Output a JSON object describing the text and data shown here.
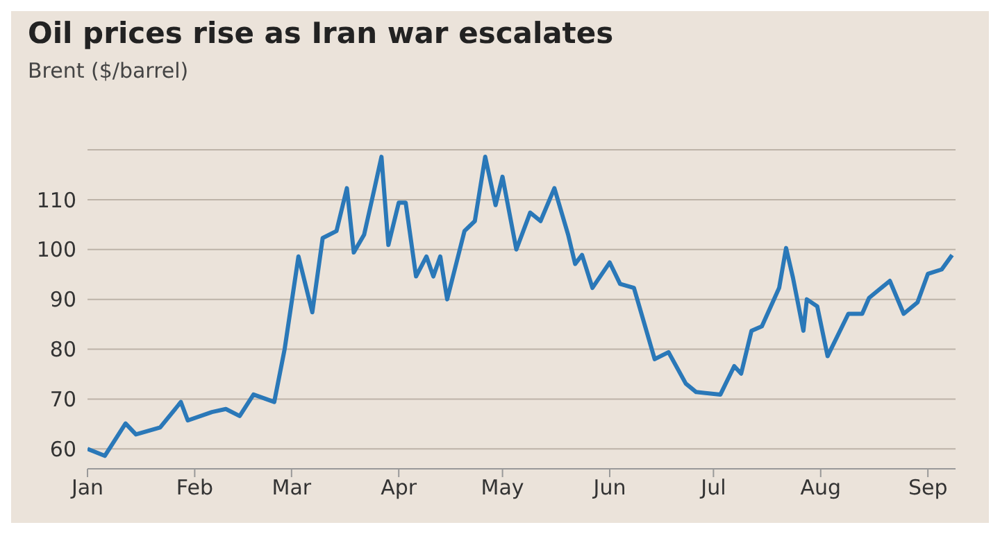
{
  "chart_data": {
    "type": "line",
    "title": "Oil prices rise as Iran war escalates",
    "subtitle": "Brent ($/barrel)",
    "x": [
      "--01-01",
      "--01-06",
      "--01-12",
      "--01-15",
      "--01-22",
      "--01-28",
      "--01-30",
      "--02-06",
      "--02-10",
      "--02-14",
      "--02-18",
      "--02-24",
      "--02-27",
      "--03-03",
      "--03-07",
      "--03-10",
      "--03-14",
      "--03-17",
      "--03-19",
      "--03-22",
      "--03-25",
      "--03-27",
      "--03-29",
      "--04-01",
      "--04-03",
      "--04-06",
      "--04-09",
      "--04-11",
      "--04-13",
      "--04-15",
      "--04-20",
      "--04-23",
      "--04-26",
      "--04-29",
      "--05-01",
      "--05-05",
      "--05-09",
      "--05-12",
      "--05-16",
      "--05-20",
      "--05-22",
      "--05-24",
      "--05-27",
      "--06-01",
      "--06-04",
      "--06-08",
      "--06-14",
      "--06-18",
      "--06-23",
      "--06-26",
      "--07-03",
      "--07-07",
      "--07-09",
      "--07-12",
      "--07-15",
      "--07-20",
      "--07-22",
      "--07-24",
      "--07-27",
      "--07-28",
      "--07-31",
      "--08-03",
      "--08-09",
      "--08-13",
      "--08-15",
      "--08-21",
      "--08-25",
      "--08-29",
      "--09-01",
      "--09-05",
      "--09-08"
    ],
    "series": [
      {
        "color": "#2a78b8",
        "values": [
          60,
          58.6,
          65.1,
          62.9,
          64.3,
          69.4,
          65.7,
          67.4,
          68,
          66.6,
          70.9,
          69.4,
          80,
          98.6,
          87.4,
          102.3,
          103.7,
          112.3,
          99.4,
          103,
          112.3,
          118.6,
          100.9,
          109.4,
          109.4,
          94.6,
          98.6,
          94.6,
          98.6,
          90,
          103.7,
          105.7,
          118.6,
          108.9,
          114.6,
          100,
          107.4,
          105.7,
          112.3,
          102.9,
          97.1,
          98.9,
          92.3,
          97.4,
          93.1,
          92.3,
          78,
          79.4,
          73.1,
          71.4,
          70.9,
          76.6,
          75.1,
          83.7,
          84.6,
          92.3,
          100.3,
          94.3,
          83.7,
          90,
          88.6,
          78.6,
          87.1,
          87.1,
          90.3,
          93.7,
          87.1,
          89.4,
          95.1,
          96,
          98.9
        ]
      }
    ],
    "xlim": [
      "--01-01",
      "--09-09"
    ],
    "xticks": [
      {
        "value": "--01-01",
        "label": "Jan"
      },
      {
        "value": "--02-01",
        "label": "Feb"
      },
      {
        "value": "--03-01",
        "label": "Mar"
      },
      {
        "value": "--04-01",
        "label": "Apr"
      },
      {
        "value": "--05-01",
        "label": "May"
      },
      {
        "value": "--06-01",
        "label": "Jun"
      },
      {
        "value": "--07-01",
        "label": "Jul"
      },
      {
        "value": "--08-01",
        "label": "Aug"
      },
      {
        "value": "--09-01",
        "label": "Sep"
      }
    ],
    "ylim": [
      56,
      120
    ],
    "yticks": [
      60,
      70,
      80,
      90,
      100,
      110
    ],
    "grid": "y",
    "legend": false,
    "marker": "none",
    "line_style": "solid"
  }
}
